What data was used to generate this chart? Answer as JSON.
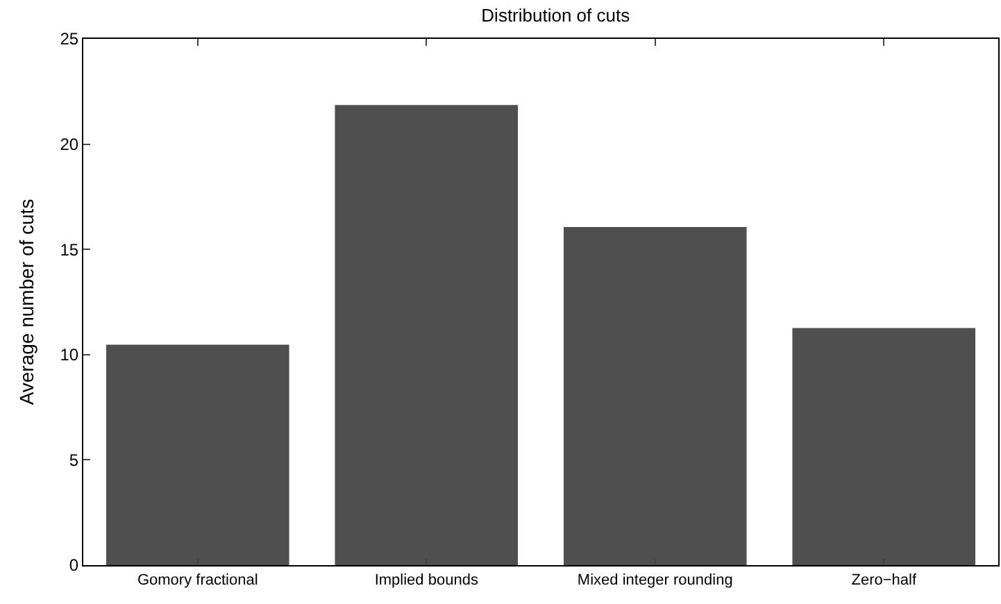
{
  "chart_data": {
    "type": "bar",
    "title": "Distribution of cuts",
    "ylabel": "Average number of cuts",
    "categories": [
      "Gomory fractional",
      "Implied bounds",
      "Mixed integer rounding",
      "Zero−half"
    ],
    "values": [
      10.47,
      21.86,
      16.06,
      11.26
    ],
    "color": "#4f4f4f",
    "ylim": [
      0,
      25
    ],
    "yticks": [
      0,
      5,
      10,
      15,
      20,
      25
    ]
  }
}
